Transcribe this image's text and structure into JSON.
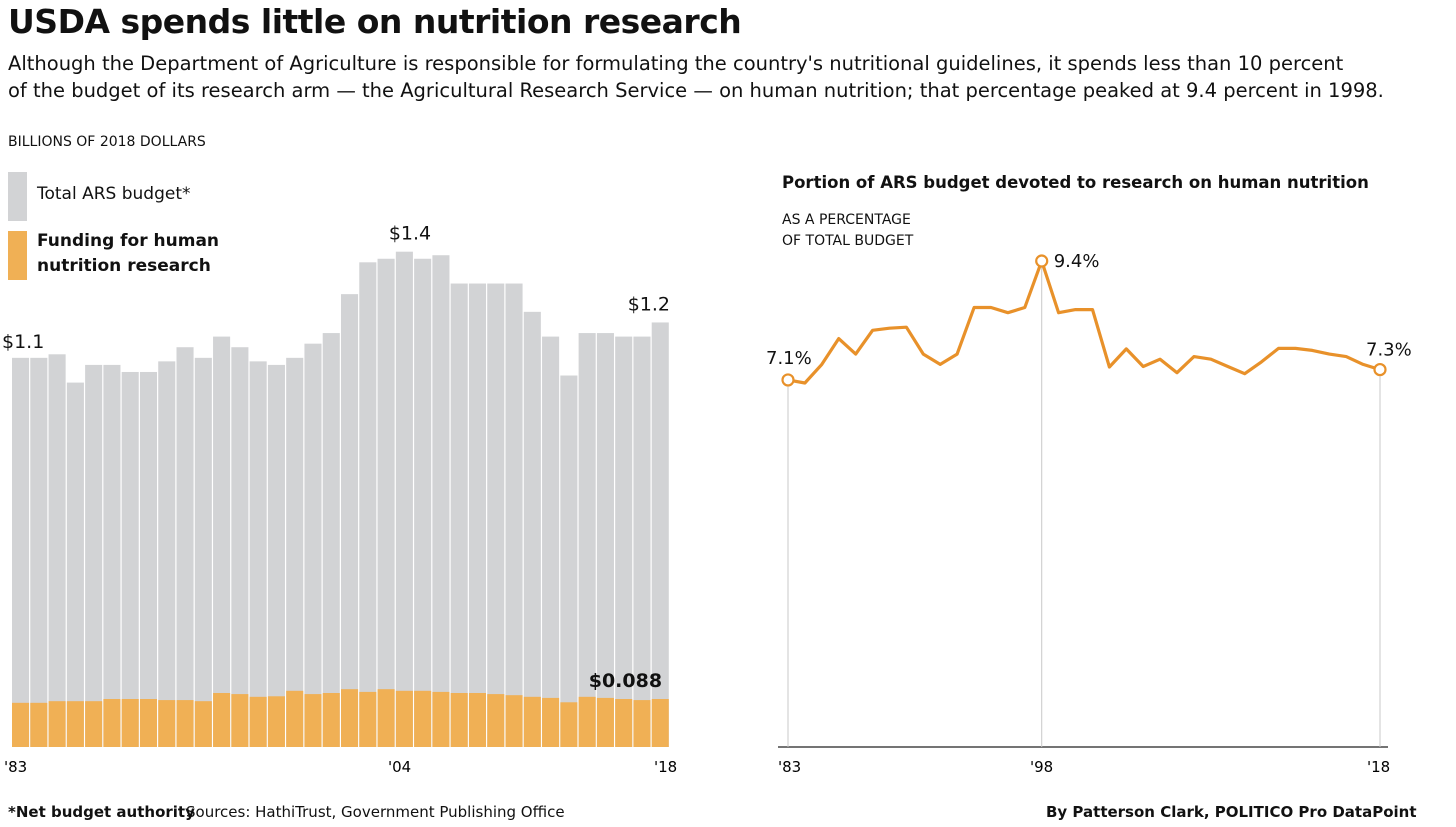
{
  "header": {
    "title": "USDA spends little on nutrition research",
    "subtitle_line1": "Although the Department of Agriculture is responsible for formulating the country's nutritional guidelines, it spends less than 10 percent",
    "subtitle_line2": "of the budget of its research arm — the Agricultural Research Service — on human nutrition; that percentage peaked at 9.4 percent in 1998."
  },
  "footer": {
    "note": "*Net budget authority",
    "sources": "Sources: HathiTrust, Government Publishing Office",
    "credit": "By Patterson Clark, POLITICO Pro DataPoint"
  },
  "colors": {
    "gray": "#d2d3d5",
    "orange": "#f0b055",
    "line": "#e8912a",
    "grid": "#c8c8c8"
  },
  "chart_data": [
    {
      "type": "bar",
      "ylabel": "BILLIONS OF 2018 DOLLARS",
      "legend": {
        "total": "Total ARS budget*",
        "nutrition_line1": "Funding for human",
        "nutrition_line2": "nutrition research",
        "placement": "top-left"
      },
      "x": [
        1983,
        1984,
        1985,
        1986,
        1987,
        1988,
        1989,
        1990,
        1991,
        1992,
        1993,
        1994,
        1995,
        1996,
        1997,
        1998,
        1999,
        2000,
        2001,
        2002,
        2003,
        2004,
        2005,
        2006,
        2007,
        2008,
        2009,
        2010,
        2011,
        2012,
        2013,
        2014,
        2015,
        2016,
        2017,
        2018
      ],
      "series": [
        {
          "name": "Total ARS budget*",
          "values": [
            1.1,
            1.1,
            1.11,
            1.03,
            1.08,
            1.08,
            1.06,
            1.06,
            1.09,
            1.13,
            1.1,
            1.16,
            1.13,
            1.09,
            1.08,
            1.1,
            1.14,
            1.17,
            1.28,
            1.37,
            1.38,
            1.4,
            1.38,
            1.39,
            1.31,
            1.31,
            1.31,
            1.31,
            1.23,
            1.16,
            1.05,
            1.17,
            1.17,
            1.16,
            1.16,
            1.2
          ]
        },
        {
          "name": "Funding for human nutrition research",
          "values": [
            0.081,
            0.081,
            0.084,
            0.084,
            0.084,
            0.088,
            0.088,
            0.088,
            0.086,
            0.086,
            0.084,
            0.099,
            0.097,
            0.092,
            0.093,
            0.103,
            0.097,
            0.099,
            0.106,
            0.101,
            0.106,
            0.103,
            0.103,
            0.101,
            0.099,
            0.099,
            0.097,
            0.095,
            0.092,
            0.09,
            0.082,
            0.092,
            0.09,
            0.088,
            0.086,
            0.088
          ]
        }
      ],
      "annotations": [
        {
          "year": 1983,
          "label": "$1.1"
        },
        {
          "year": 2004,
          "label": "$1.4"
        },
        {
          "year": 2018,
          "label": "$1.2"
        },
        {
          "year": 2018,
          "label": "$0.088"
        }
      ],
      "xticks": [
        "'83",
        "'04",
        "'18"
      ],
      "ylim": [
        0,
        1.45
      ]
    },
    {
      "type": "line",
      "title": "Portion of ARS budget devoted to research on human nutrition",
      "ylabel_line1": "AS A PERCENTAGE",
      "ylabel_line2": "OF TOTAL BUDGET",
      "x": [
        1983,
        1984,
        1985,
        1986,
        1987,
        1988,
        1989,
        1990,
        1991,
        1992,
        1993,
        1994,
        1995,
        1996,
        1997,
        1998,
        1999,
        2000,
        2001,
        2002,
        2003,
        2004,
        2005,
        2006,
        2007,
        2008,
        2009,
        2010,
        2011,
        2012,
        2013,
        2014,
        2015,
        2016,
        2017,
        2018
      ],
      "values": [
        7.1,
        7.04,
        7.4,
        7.9,
        7.6,
        8.06,
        8.1,
        8.12,
        7.6,
        7.4,
        7.6,
        8.5,
        8.5,
        8.4,
        8.5,
        9.4,
        8.4,
        8.46,
        8.46,
        7.35,
        7.7,
        7.36,
        7.5,
        7.24,
        7.55,
        7.5,
        7.36,
        7.22,
        7.45,
        7.71,
        7.71,
        7.67,
        7.6,
        7.55,
        7.4,
        7.3
      ],
      "annotations": [
        {
          "year": 1983,
          "label": "7.1%"
        },
        {
          "year": 1998,
          "label": "9.4%"
        },
        {
          "year": 2018,
          "label": "7.3%"
        }
      ],
      "xticks": [
        "'83",
        "'98",
        "'18"
      ],
      "ylim": [
        0,
        9.4
      ]
    }
  ]
}
